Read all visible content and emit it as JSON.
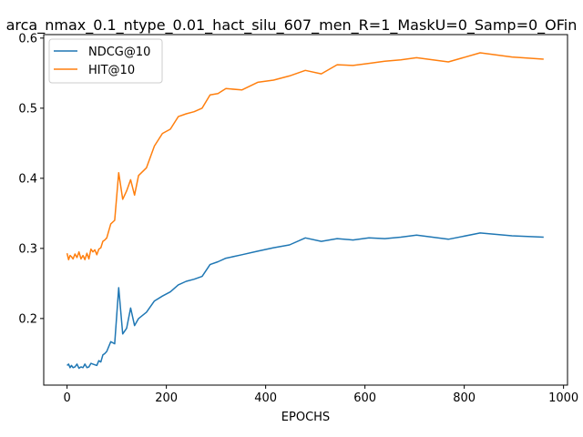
{
  "chart_data": {
    "type": "line",
    "title": "arca_nmax_0.1_ntype_0.01_hact_silu_607_men_R=1_MaskU=0_Samp=0_OFin",
    "xlabel": "EPOCHS",
    "ylabel": "",
    "xlim": [
      -47,
      1008
    ],
    "ylim": [
      0.105,
      0.605
    ],
    "xticks": [
      0,
      200,
      400,
      600,
      800,
      1000
    ],
    "yticks": [
      0.2,
      0.3,
      0.4,
      0.5,
      0.6
    ],
    "xtick_labels": [
      "0",
      "200",
      "400",
      "600",
      "800",
      "1000"
    ],
    "ytick_labels": [
      "0.2",
      "0.3",
      "0.4",
      "0.5",
      "0.6"
    ],
    "grid": false,
    "legend_position": "upper-left",
    "series": [
      {
        "name": "NDCG@10",
        "color": "#1f77b4",
        "x": [
          0,
          3,
          6,
          9,
          12,
          16,
          20,
          24,
          28,
          32,
          36,
          40,
          44,
          48,
          52,
          56,
          60,
          64,
          68,
          72,
          76,
          80,
          88,
          96,
          104,
          112,
          120,
          128,
          136,
          144,
          160,
          176,
          192,
          208,
          224,
          240,
          256,
          272,
          288,
          304,
          320,
          352,
          384,
          416,
          448,
          480,
          512,
          544,
          576,
          608,
          640,
          672,
          704,
          768,
          832,
          896,
          960
        ],
        "y": [
          0.133,
          0.135,
          0.13,
          0.133,
          0.13,
          0.131,
          0.135,
          0.129,
          0.131,
          0.13,
          0.135,
          0.13,
          0.131,
          0.136,
          0.135,
          0.134,
          0.133,
          0.14,
          0.138,
          0.148,
          0.15,
          0.153,
          0.167,
          0.164,
          0.244,
          0.178,
          0.186,
          0.215,
          0.19,
          0.2,
          0.209,
          0.225,
          0.232,
          0.238,
          0.248,
          0.253,
          0.256,
          0.26,
          0.277,
          0.281,
          0.286,
          0.291,
          0.296,
          0.301,
          0.305,
          0.315,
          0.31,
          0.314,
          0.312,
          0.315,
          0.314,
          0.316,
          0.319,
          0.313,
          0.322,
          0.318,
          0.316
        ]
      },
      {
        "name": "HIT@10",
        "color": "#ff7f0e",
        "x": [
          0,
          3,
          6,
          9,
          12,
          16,
          20,
          24,
          28,
          32,
          36,
          40,
          44,
          48,
          52,
          56,
          60,
          64,
          68,
          72,
          76,
          80,
          88,
          96,
          104,
          112,
          120,
          128,
          136,
          144,
          160,
          176,
          192,
          208,
          224,
          240,
          256,
          272,
          288,
          304,
          320,
          352,
          384,
          416,
          448,
          480,
          512,
          544,
          576,
          608,
          640,
          672,
          704,
          768,
          832,
          896,
          960
        ],
        "y": [
          0.293,
          0.284,
          0.29,
          0.288,
          0.285,
          0.292,
          0.287,
          0.295,
          0.285,
          0.29,
          0.284,
          0.293,
          0.285,
          0.299,
          0.295,
          0.298,
          0.291,
          0.299,
          0.301,
          0.31,
          0.312,
          0.315,
          0.335,
          0.34,
          0.408,
          0.37,
          0.382,
          0.398,
          0.376,
          0.404,
          0.415,
          0.446,
          0.464,
          0.47,
          0.488,
          0.492,
          0.495,
          0.5,
          0.519,
          0.521,
          0.528,
          0.526,
          0.537,
          0.54,
          0.546,
          0.554,
          0.549,
          0.562,
          0.561,
          0.564,
          0.567,
          0.569,
          0.572,
          0.566,
          0.579,
          0.573,
          0.57
        ]
      }
    ]
  }
}
